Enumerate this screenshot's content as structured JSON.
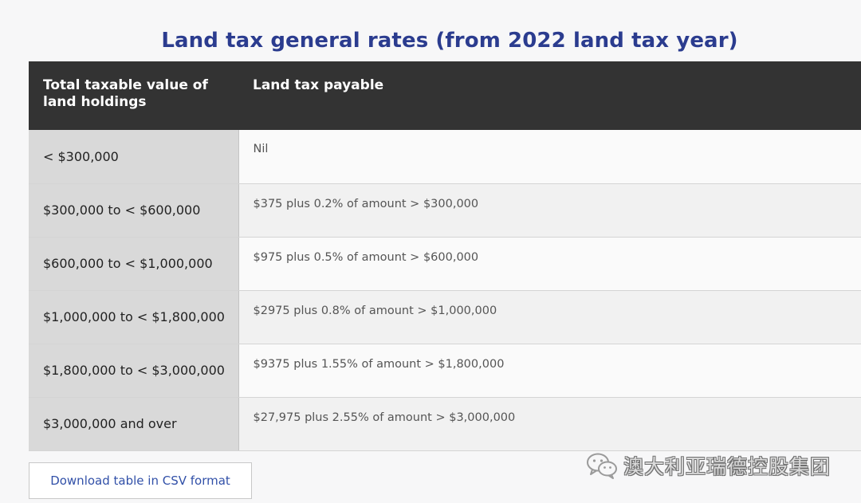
{
  "title": "Land tax general rates (from 2022 land tax year)",
  "table": {
    "headers": [
      "Total taxable value of land holdings",
      "Land tax payable"
    ],
    "rows": [
      {
        "value": "< $300,000",
        "payable": "Nil"
      },
      {
        "value": "$300,000 to < $600,000",
        "payable": "$375 plus 0.2% of amount > $300,000"
      },
      {
        "value": "$600,000 to < $1,000,000",
        "payable": "$975 plus 0.5% of amount > $600,000"
      },
      {
        "value": "$1,000,000 to < $1,800,000",
        "payable": "$2975 plus 0.8% of amount > $1,000,000"
      },
      {
        "value": "$1,800,000 to < $3,000,000",
        "payable": "$9375 plus 1.55% of amount > $1,800,000"
      },
      {
        "value": "$3,000,000 and over",
        "payable": "$27,975 plus 2.55% of amount > $3,000,000"
      }
    ]
  },
  "download_button": "Download table in CSV format",
  "watermark": {
    "icon": "wechat-icon",
    "text": "澳大利亚瑞德控股集团"
  },
  "colors": {
    "title": "#2b3c8f",
    "header_bg": "#333333",
    "value_col_bg": "#d9d9d9",
    "link": "#3150a8"
  }
}
